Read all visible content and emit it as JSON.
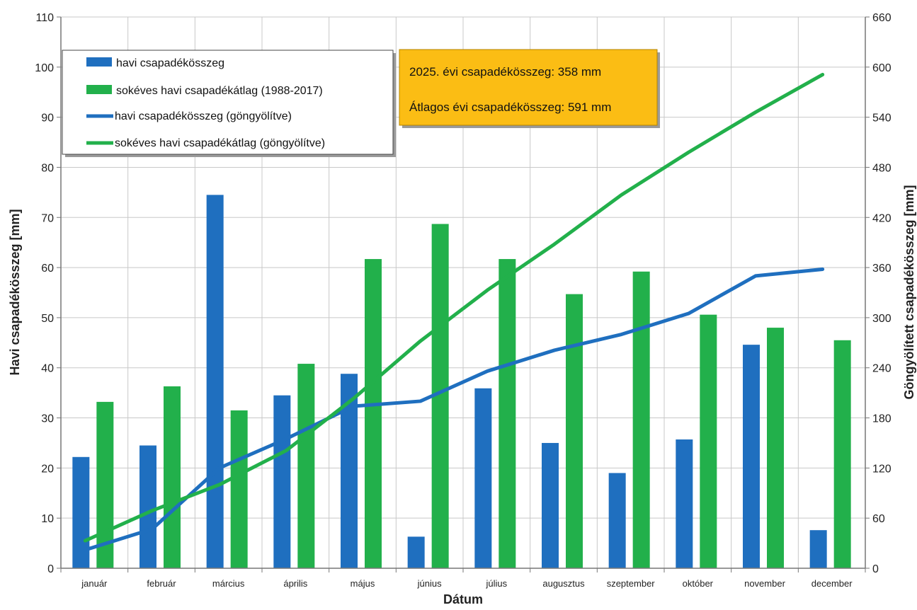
{
  "chart_data": {
    "type": "bar",
    "xlabel": "Dátum",
    "ylabel": "Havi csapadékösszeg [mm]",
    "y2label": "Göngyölített csapadékösszeg [mm]",
    "ylim": [
      0,
      110
    ],
    "y2lim": [
      0,
      660
    ],
    "yticks": [
      "0",
      "10",
      "20",
      "30",
      "40",
      "50",
      "60",
      "70",
      "80",
      "90",
      "100",
      "110"
    ],
    "y2ticks": [
      "0",
      "60",
      "120",
      "180",
      "240",
      "300",
      "360",
      "420",
      "480",
      "540",
      "600",
      "660"
    ],
    "grid": true,
    "legend_position": "top-left",
    "categories": [
      "január",
      "február",
      "március",
      "április",
      "május",
      "június",
      "július",
      "augusztus",
      "szeptember",
      "október",
      "november",
      "december"
    ],
    "series": [
      {
        "name": "havi csapadékösszeg",
        "type": "bar",
        "axis": "left",
        "color": "#1f6fbf",
        "values": [
          22.2,
          24.5,
          74.5,
          34.5,
          38.8,
          6.3,
          35.9,
          25,
          19,
          25.7,
          44.6,
          7.6
        ]
      },
      {
        "name": "sokéves havi csapadékátlag (1988-2017)",
        "type": "bar",
        "axis": "left",
        "color": "#22b04b",
        "values": [
          33.2,
          36.3,
          31.5,
          40.8,
          61.7,
          68.7,
          61.7,
          54.7,
          59.2,
          50.6,
          48,
          45.5
        ]
      },
      {
        "name": "havi csapadékösszeg (göngyölítve)",
        "type": "line",
        "axis": "right",
        "color": "#1f6fbf",
        "values": [
          22,
          47,
          120,
          155,
          194,
          200,
          236,
          261,
          280,
          305,
          350,
          358
        ]
      },
      {
        "name": "sokéves havi csapadékátlag (göngyölítve)",
        "type": "line",
        "axis": "right",
        "color": "#22b04b",
        "values": [
          33,
          69,
          100,
          141,
          203,
          272,
          333,
          388,
          447,
          498,
          546,
          591
        ]
      }
    ],
    "annotations": [
      "2025. évi csapadékösszeg: 358 mm",
      "Átlagos évi csapadékösszeg: 591 mm"
    ],
    "annotation_box_color": "#fbbd14"
  }
}
